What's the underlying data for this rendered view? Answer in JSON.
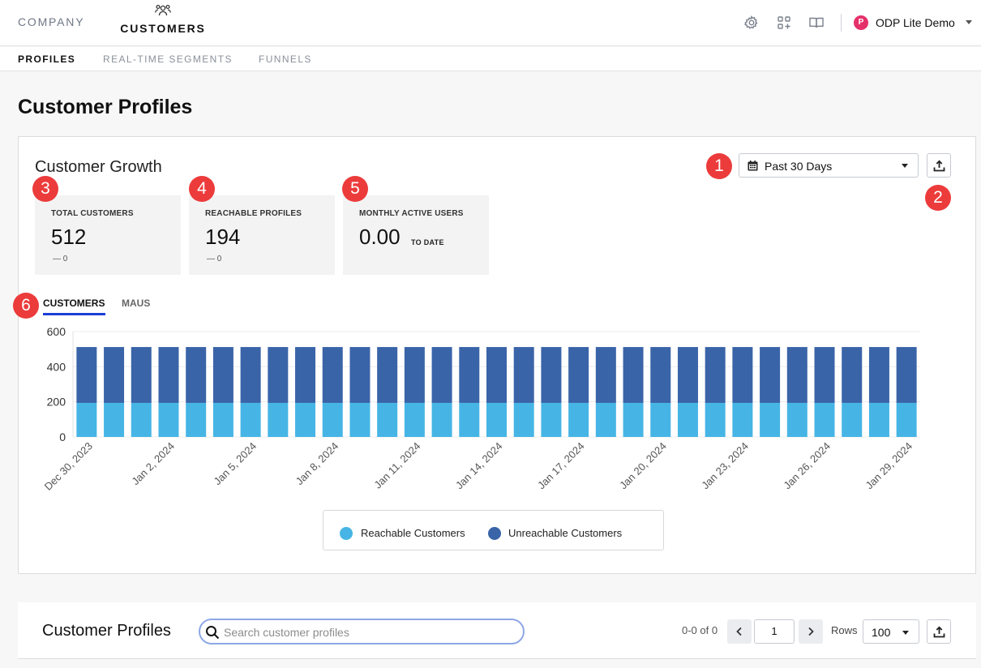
{
  "nav": {
    "company": "COMPANY",
    "customers": "CUSTOMERS",
    "org_initial": "P",
    "org_name": "ODP Lite Demo",
    "icons": [
      "gear-icon",
      "apps-add-icon",
      "book-icon",
      "chevron-down-icon"
    ]
  },
  "subnav": {
    "tabs": [
      {
        "label": "PROFILES",
        "active": true
      },
      {
        "label": "REAL-TIME SEGMENTS",
        "active": false
      },
      {
        "label": "FUNNELS",
        "active": false
      }
    ]
  },
  "page": {
    "title": "Customer Profiles"
  },
  "growth": {
    "title": "Customer Growth",
    "date_range": "Past 30 Days",
    "stats": [
      {
        "label": "TOTAL CUSTOMERS",
        "value": "512",
        "delta": "— 0"
      },
      {
        "label": "REACHABLE PROFILES",
        "value": "194",
        "delta": "— 0"
      },
      {
        "label": "MONTHLY ACTIVE USERS",
        "value": "0.00",
        "suffix": "TO DATE"
      }
    ],
    "tabs": [
      "CUSTOMERS",
      "MAUS"
    ],
    "active_tab": "CUSTOMERS"
  },
  "markers": [
    "1",
    "2",
    "3",
    "4",
    "5",
    "6"
  ],
  "chart_data": {
    "type": "bar",
    "stacked": true,
    "ylim": [
      0,
      600
    ],
    "yticks": [
      "600",
      "400",
      "200",
      "0"
    ],
    "categories": [
      "Dec 30, 2023",
      "Dec 31, 2023",
      "Jan 1, 2024",
      "Jan 2, 2024",
      "Jan 3, 2024",
      "Jan 4, 2024",
      "Jan 5, 2024",
      "Jan 6, 2024",
      "Jan 7, 2024",
      "Jan 8, 2024",
      "Jan 9, 2024",
      "Jan 10, 2024",
      "Jan 11, 2024",
      "Jan 12, 2024",
      "Jan 13, 2024",
      "Jan 14, 2024",
      "Jan 15, 2024",
      "Jan 16, 2024",
      "Jan 17, 2024",
      "Jan 18, 2024",
      "Jan 19, 2024",
      "Jan 20, 2024",
      "Jan 21, 2024",
      "Jan 22, 2024",
      "Jan 23, 2024",
      "Jan 24, 2024",
      "Jan 25, 2024",
      "Jan 26, 2024",
      "Jan 27, 2024",
      "Jan 28, 2024",
      "Jan 29, 2024"
    ],
    "tick_labels": [
      "Dec 30, 2023",
      "Jan 2, 2024",
      "Jan 5, 2024",
      "Jan 8, 2024",
      "Jan 11, 2024",
      "Jan 14, 2024",
      "Jan 17, 2024",
      "Jan 20, 2024",
      "Jan 23, 2024",
      "Jan 26, 2024",
      "Jan 29, 2024"
    ],
    "series": [
      {
        "name": "Reachable Customers",
        "color": "#46b5e5",
        "values": [
          194,
          194,
          194,
          194,
          194,
          194,
          194,
          194,
          194,
          194,
          194,
          194,
          194,
          194,
          194,
          194,
          194,
          194,
          194,
          194,
          194,
          194,
          194,
          194,
          194,
          194,
          194,
          194,
          194,
          194,
          194
        ]
      },
      {
        "name": "Unreachable Customers",
        "color": "#3a64a8",
        "values": [
          318,
          318,
          318,
          318,
          318,
          318,
          318,
          318,
          318,
          318,
          318,
          318,
          318,
          318,
          318,
          318,
          318,
          318,
          318,
          318,
          318,
          318,
          318,
          318,
          318,
          318,
          318,
          318,
          318,
          318,
          318
        ]
      }
    ],
    "legend_position": "bottom"
  },
  "profiles": {
    "title": "Customer Profiles",
    "search_placeholder": "Search customer profiles",
    "search_value": "",
    "range": "0-0 of 0",
    "page": "1",
    "rows_label": "Rows",
    "rows_value": "100"
  }
}
